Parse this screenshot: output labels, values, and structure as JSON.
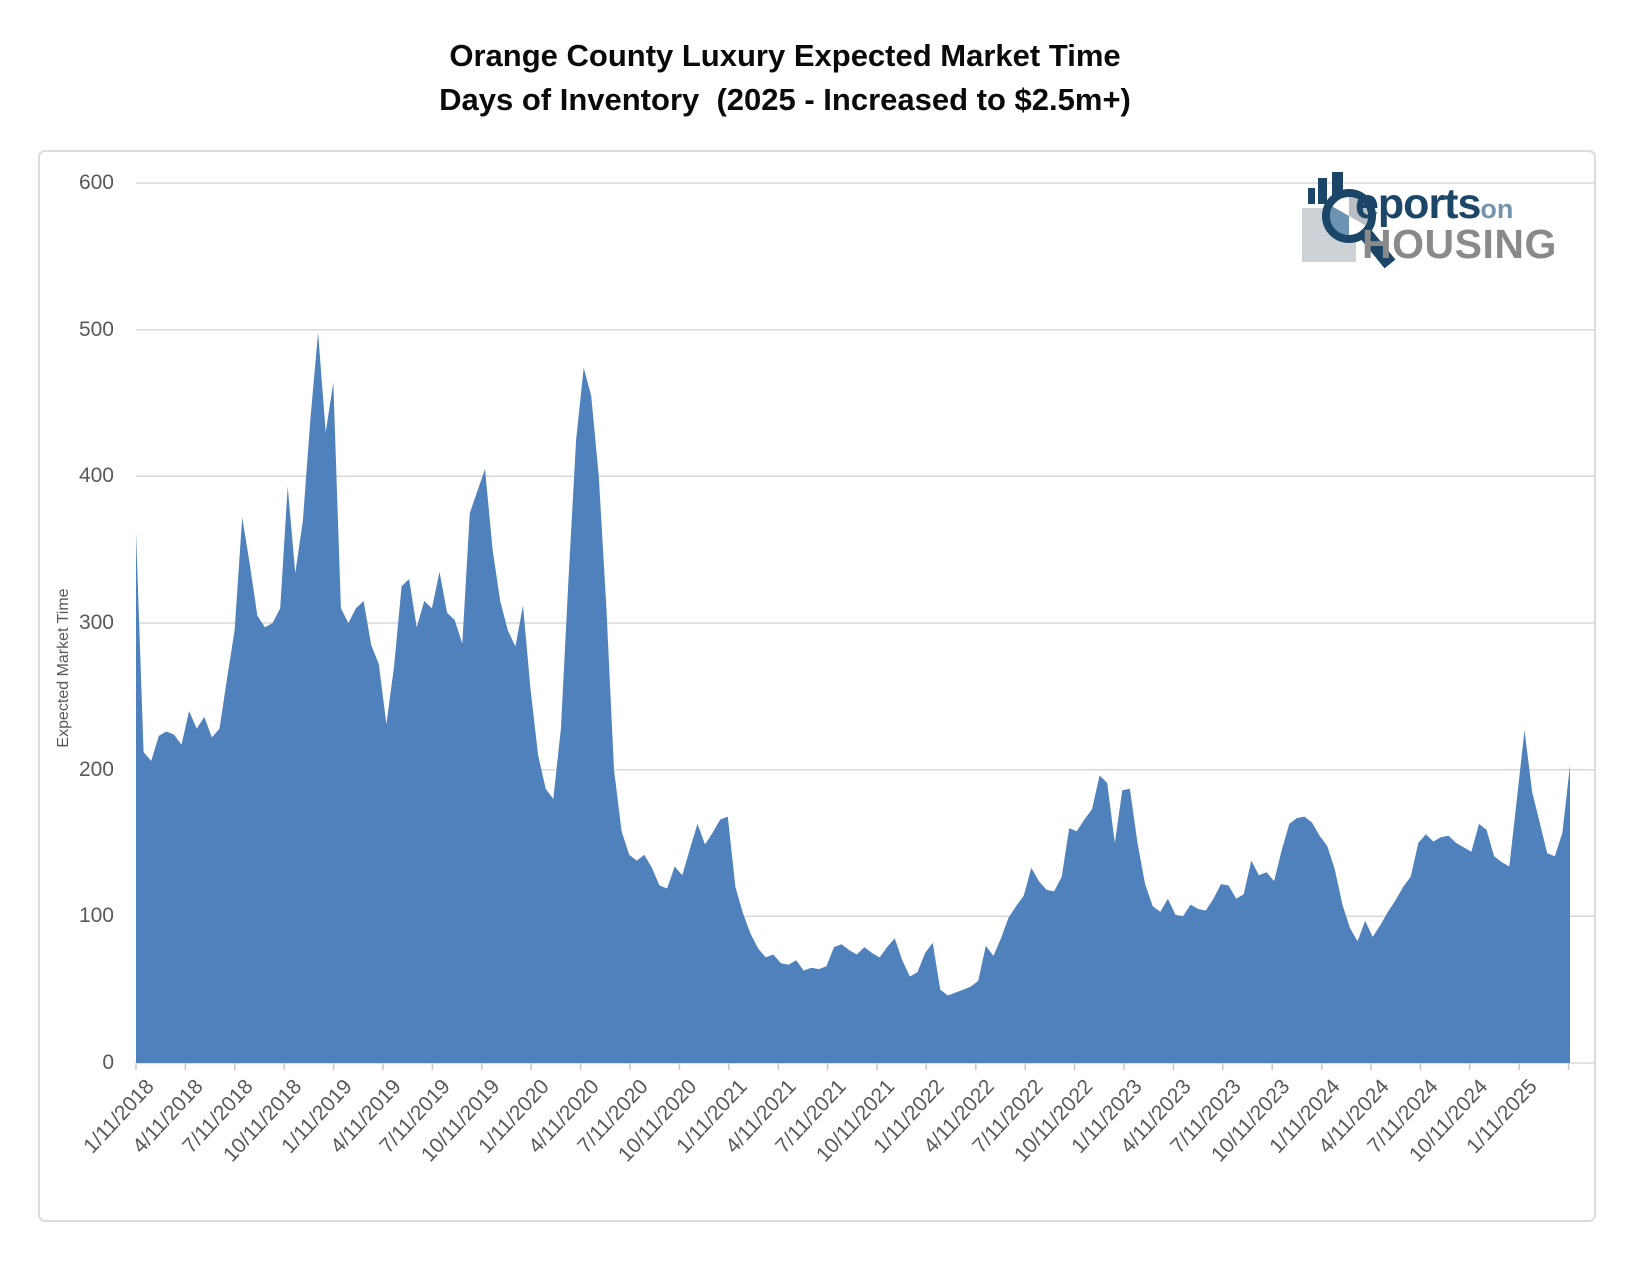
{
  "title": {
    "line1": "Orange County Luxury Expected Market Time",
    "line2": "Days of Inventory  (2025 - Increased to $2.5m+)"
  },
  "logo": {
    "reports_text": "eports",
    "on_text": "on",
    "housing_text": "HOUSING",
    "navy": "#1c4668",
    "steel": "#7593aa",
    "gray": "#8a8a8a",
    "square_gray": "#cdd2d6",
    "pie_silver": "#b9bec2",
    "pie_blue": "#6b93b4"
  },
  "chart_data": {
    "type": "area",
    "title": "Orange County Luxury Expected Market Time — Days of Inventory (2025 - Increased to $2.5m+)",
    "ylabel": "Expected Market Time",
    "ylim": [
      0,
      600
    ],
    "y_ticks": [
      0,
      100,
      200,
      300,
      400,
      500,
      600
    ],
    "grid": "horizontal",
    "legend": "none",
    "area_color": "#4f81bd",
    "gridline_color": "#d9d9d9",
    "tick_color": "#c8c8c8",
    "x_start": "1/11/2018",
    "x_end_approx": "4/11/2025",
    "sampling": "approximately biweekly between labeled quarterly ticks",
    "x_tick_labels": [
      "1/11/2018",
      "4/11/2018",
      "7/11/2018",
      "10/11/2018",
      "1/11/2019",
      "4/11/2019",
      "7/11/2019",
      "10/11/2019",
      "1/11/2020",
      "4/11/2020",
      "7/11/2020",
      "10/11/2020",
      "1/11/2021",
      "4/11/2021",
      "7/11/2021",
      "10/11/2021",
      "1/11/2022",
      "4/11/2022",
      "7/11/2022",
      "10/11/2022",
      "1/11/2023",
      "4/11/2023",
      "7/11/2023",
      "10/11/2023",
      "1/11/2024",
      "4/11/2024",
      "7/11/2024",
      "10/11/2024",
      "1/11/2025"
    ],
    "values": [
      362,
      212,
      206,
      223,
      226,
      224,
      217,
      240,
      228,
      236,
      222,
      228,
      262,
      295,
      372,
      340,
      305,
      297,
      300,
      310,
      393,
      334,
      370,
      440,
      498,
      430,
      464,
      310,
      300,
      310,
      315,
      285,
      272,
      231,
      270,
      325,
      330,
      297,
      315,
      310,
      335,
      307,
      302,
      286,
      375,
      390,
      405,
      350,
      315,
      295,
      284,
      312,
      255,
      210,
      187,
      180,
      228,
      330,
      425,
      474,
      455,
      400,
      310,
      200,
      158,
      142,
      138,
      142,
      133,
      121,
      119,
      134,
      128,
      146,
      163,
      149,
      157,
      166,
      168,
      120,
      102,
      88,
      78,
      72,
      74,
      68,
      67,
      70,
      63,
      65,
      64,
      66,
      79,
      81,
      77,
      74,
      79,
      75,
      72,
      79,
      85,
      70,
      59,
      62,
      75,
      82,
      50,
      46,
      48,
      50,
      52,
      56,
      80,
      73,
      85,
      99,
      107,
      114,
      133,
      124,
      118,
      117,
      127,
      160,
      158,
      166,
      173,
      196,
      191,
      150,
      186,
      187,
      150,
      122,
      107,
      103,
      112,
      101,
      100,
      108,
      105,
      104,
      112,
      122,
      121,
      112,
      115,
      138,
      128,
      130,
      124,
      145,
      163,
      167,
      168,
      164,
      155,
      148,
      132,
      108,
      92,
      83,
      97,
      86,
      94,
      103,
      111,
      120,
      127,
      150,
      156,
      151,
      154,
      155,
      150,
      147,
      144,
      163,
      159,
      141,
      137,
      134,
      180,
      227,
      185,
      164,
      143,
      141,
      157,
      203
    ]
  }
}
